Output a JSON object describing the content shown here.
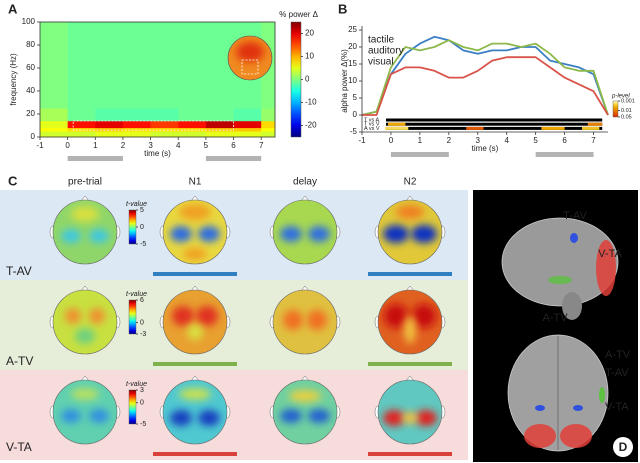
{
  "chart_data": [
    {
      "type": "heatmap",
      "panel_label": "A",
      "xlabel": "time (s)",
      "ylabel": "frequency (Hz)",
      "colorbar_label": "% power Δ",
      "x_edges": [
        -1,
        0,
        1,
        2,
        3,
        4,
        5,
        6,
        7,
        7.5
      ],
      "y_edges": [
        0,
        5,
        8,
        14,
        25,
        100
      ],
      "values": [
        [
          4,
          4,
          5,
          5,
          4,
          4,
          5,
          5,
          4
        ],
        [
          6,
          8,
          9,
          8,
          8,
          8,
          9,
          9,
          6
        ],
        [
          5,
          18,
          20,
          18,
          16,
          18,
          22,
          20,
          8
        ],
        [
          2,
          -1,
          -2,
          -2,
          -2,
          -1,
          -1,
          -2,
          1
        ],
        [
          0,
          -1,
          -1,
          -1,
          -1,
          -1,
          -1,
          -1,
          0
        ]
      ],
      "zlim": [
        -25,
        25
      ],
      "cticks": [
        20,
        10,
        0,
        -10,
        -20
      ],
      "xlim": [
        -1,
        7.5
      ],
      "ylim": [
        0,
        100
      ],
      "xticks": [
        -1,
        0,
        1,
        2,
        3,
        4,
        5,
        6,
        7
      ],
      "yticks": [
        0,
        20,
        40,
        60,
        80,
        100
      ],
      "time_windows": [
        [
          0,
          2
        ],
        [
          5,
          7
        ]
      ]
    },
    {
      "type": "line",
      "panel_label": "B",
      "xlabel": "time (s)",
      "ylabel": "alpha power Δ(%)",
      "x": [
        -1,
        -0.5,
        0,
        0.5,
        1,
        1.5,
        2,
        2.5,
        3,
        3.5,
        4,
        4.5,
        5,
        5.5,
        6,
        6.5,
        7,
        7.5
      ],
      "series": [
        {
          "name": "tactile",
          "color": "#3a7fc4",
          "values": [
            0,
            1,
            12,
            18,
            21,
            23,
            22,
            19,
            18,
            19,
            19,
            20,
            20,
            16,
            15,
            14,
            12,
            0
          ]
        },
        {
          "name": "auditory",
          "color": "#8db84a",
          "values": [
            0,
            1,
            14,
            20,
            19,
            20,
            22,
            20,
            19,
            21,
            21,
            20,
            21,
            18,
            14,
            13,
            13,
            0
          ]
        },
        {
          "name": "visual",
          "color": "#d9534a",
          "values": [
            0,
            0,
            12,
            14,
            14,
            13,
            11,
            11,
            13,
            16,
            17,
            17,
            17,
            14,
            11,
            9,
            7,
            0
          ]
        }
      ],
      "xlim": [
        -1,
        7.5
      ],
      "ylim": [
        -5,
        25
      ],
      "xticks": [
        -1,
        0,
        1,
        2,
        3,
        4,
        5,
        6,
        7
      ],
      "yticks": [
        -5,
        0,
        5,
        10,
        15,
        20,
        25
      ],
      "comparisons": [
        {
          "label": "T vs A",
          "intervals": []
        },
        {
          "label": "T vs V",
          "intervals": [
            {
              "start": -0.1,
              "end": 0.5,
              "p": 0.005
            },
            {
              "start": 6.8,
              "end": 7.3,
              "p": 0.01
            }
          ]
        },
        {
          "label": "A vs V",
          "intervals": [
            {
              "start": -0.2,
              "end": 0.6,
              "p": 0.002
            },
            {
              "start": 2.6,
              "end": 3.2,
              "p": 0.02
            },
            {
              "start": 5.2,
              "end": 6.0,
              "p": 0.005
            },
            {
              "start": 6.6,
              "end": 7.2,
              "p": 0.003
            }
          ]
        }
      ],
      "p_label": "p-level",
      "p_ticks": [
        0.001,
        0.01,
        0.05
      ],
      "time_windows": [
        [
          0,
          2
        ],
        [
          5,
          7
        ]
      ]
    }
  ],
  "panel_c": {
    "label": "C",
    "columns": [
      "pre-trial",
      "N1",
      "delay",
      "N2"
    ],
    "rows": [
      {
        "name": "T-AV",
        "color": "#2f7fc1",
        "colorbar_label": "t-value",
        "clim": [
          -5,
          5
        ],
        "ticks": [
          5,
          0,
          -5
        ]
      },
      {
        "name": "A-TV",
        "color": "#7fb24a",
        "colorbar_label": "t-value",
        "clim": [
          -3,
          6
        ],
        "ticks": [
          6,
          0,
          -3
        ]
      },
      {
        "name": "V-TA",
        "color": "#d9413b",
        "colorbar_label": "t-value",
        "clim": [
          -5,
          3
        ],
        "ticks": [
          3,
          0,
          -5
        ]
      }
    ]
  },
  "panel_d": {
    "label": "D",
    "lateral": [
      "T-AV",
      "V-TA",
      "A-TV"
    ],
    "dorsal": [
      "A-TV",
      "T-AV",
      "V-TA"
    ]
  }
}
